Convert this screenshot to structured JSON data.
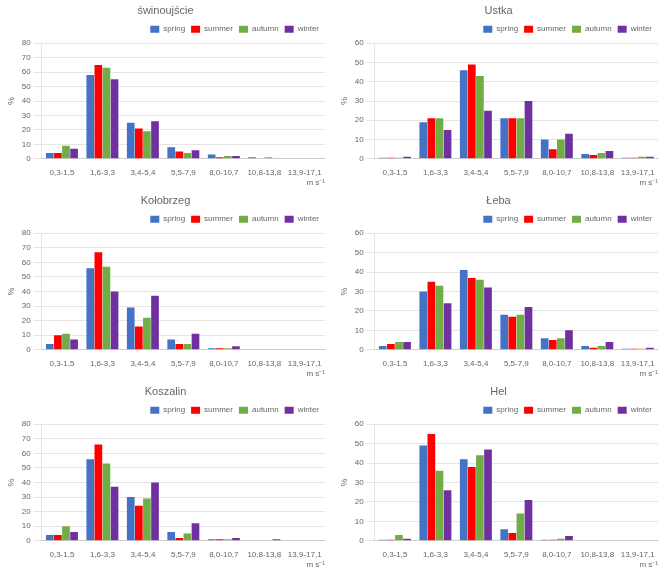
{
  "chart_data": [
    {
      "type": "bar",
      "title": "świnoujście",
      "xlabel": "m s⁻¹",
      "ylabel": "%",
      "categories": [
        "0,3-1,5",
        "1,6-3,3",
        "3,4-5,4",
        "5,5-7,9",
        "8,0-10,7",
        "10,8-13,8",
        "13,9-17,1"
      ],
      "series": [
        {
          "name": "spring",
          "color": "#4472C4",
          "values": [
            4,
            58,
            25,
            8,
            3,
            1,
            0
          ]
        },
        {
          "name": "summer",
          "color": "#FF0000",
          "values": [
            4,
            65,
            21,
            5,
            1,
            0,
            0
          ]
        },
        {
          "name": "autumn",
          "color": "#70AD47",
          "values": [
            9,
            63,
            19,
            4,
            2,
            1,
            0
          ]
        },
        {
          "name": "winter",
          "color": "#7030A0",
          "values": [
            7,
            55,
            26,
            6,
            2,
            0,
            0
          ]
        }
      ],
      "ylim": [
        0,
        80
      ],
      "yticks": [
        0,
        10,
        20,
        30,
        40,
        50,
        60,
        70,
        80
      ],
      "grid": true,
      "legend": "upper right"
    },
    {
      "type": "bar",
      "title": "Ustka",
      "xlabel": "m s⁻¹",
      "ylabel": "%",
      "categories": [
        "0,3-1,5",
        "1,6-3,3",
        "3,4-5,4",
        "5,5-7,9",
        "8,0-10,7",
        "10,8-13,8",
        "13,9-17,1"
      ],
      "series": [
        {
          "name": "spring",
          "color": "#4472C4",
          "values": [
            0.5,
            19,
            46,
            21,
            10,
            2.5,
            0.5
          ]
        },
        {
          "name": "summer",
          "color": "#FF0000",
          "values": [
            0.5,
            21,
            49,
            21,
            5,
            2,
            0.5
          ]
        },
        {
          "name": "autumn",
          "color": "#70AD47",
          "values": [
            0.5,
            21,
            43,
            21,
            10,
            3,
            1
          ]
        },
        {
          "name": "winter",
          "color": "#7030A0",
          "values": [
            1,
            15,
            25,
            30,
            13,
            4,
            1
          ]
        }
      ],
      "ylim": [
        0,
        60
      ],
      "yticks": [
        0,
        10,
        20,
        30,
        40,
        50,
        60
      ],
      "grid": true,
      "legend": "upper right"
    },
    {
      "type": "bar",
      "title": "Kołobrzeg",
      "xlabel": "m s⁻¹",
      "ylabel": "%",
      "categories": [
        "0,3-1,5",
        "1,6-3,3",
        "3,4-5,4",
        "5,5-7,9",
        "8,0-10,7",
        "10,8-13,8",
        "13,9-17,1"
      ],
      "series": [
        {
          "name": "spring",
          "color": "#4472C4",
          "values": [
            4,
            56,
            29,
            7,
            1,
            0,
            0
          ]
        },
        {
          "name": "summer",
          "color": "#FF0000",
          "values": [
            10,
            67,
            16,
            4,
            1,
            0,
            0
          ]
        },
        {
          "name": "autumn",
          "color": "#70AD47",
          "values": [
            11,
            57,
            22,
            4,
            1,
            0,
            0
          ]
        },
        {
          "name": "winter",
          "color": "#7030A0",
          "values": [
            7,
            40,
            37,
            11,
            2.5,
            0,
            0
          ]
        }
      ],
      "ylim": [
        0,
        80
      ],
      "yticks": [
        0,
        10,
        20,
        30,
        40,
        50,
        60,
        70,
        80
      ],
      "grid": true,
      "legend": "upper right"
    },
    {
      "type": "bar",
      "title": "Łeba",
      "xlabel": "m s⁻¹",
      "ylabel": "%",
      "categories": [
        "0,3-1,5",
        "1,6-3,3",
        "3,4-5,4",
        "5,5-7,9",
        "8,0-10,7",
        "10,8-13,8",
        "13,9-17,1"
      ],
      "series": [
        {
          "name": "spring",
          "color": "#4472C4",
          "values": [
            2,
            30,
            41,
            18,
            6,
            2,
            0.5
          ]
        },
        {
          "name": "summer",
          "color": "#FF0000",
          "values": [
            3,
            35,
            37,
            17,
            5,
            1,
            0.5
          ]
        },
        {
          "name": "autumn",
          "color": "#70AD47",
          "values": [
            4,
            33,
            36,
            18,
            6,
            2,
            0.5
          ]
        },
        {
          "name": "winter",
          "color": "#7030A0",
          "values": [
            4,
            24,
            32,
            22,
            10,
            4,
            1
          ]
        }
      ],
      "ylim": [
        0,
        60
      ],
      "yticks": [
        0,
        10,
        20,
        30,
        40,
        50,
        60
      ],
      "grid": true,
      "legend": "upper right"
    },
    {
      "type": "bar",
      "title": "Koszalin",
      "xlabel": "m s⁻¹",
      "ylabel": "%",
      "categories": [
        "0,3-1,5",
        "1,6-3,3",
        "3,4-5,4",
        "5,5-7,9",
        "8,0-10,7",
        "10,8-13,8",
        "13,9-17,1"
      ],
      "series": [
        {
          "name": "spring",
          "color": "#4472C4",
          "values": [
            4,
            56,
            30,
            6,
            1,
            0,
            0
          ]
        },
        {
          "name": "summer",
          "color": "#FF0000",
          "values": [
            4,
            66,
            24,
            2,
            1,
            0,
            0
          ]
        },
        {
          "name": "autumn",
          "color": "#70AD47",
          "values": [
            10,
            53,
            29,
            5,
            1,
            0,
            0
          ]
        },
        {
          "name": "winter",
          "color": "#7030A0",
          "values": [
            6,
            37,
            40,
            12,
            2,
            1,
            0
          ]
        }
      ],
      "ylim": [
        0,
        80
      ],
      "yticks": [
        0,
        10,
        20,
        30,
        40,
        50,
        60,
        70,
        80
      ],
      "grid": true,
      "legend": "upper right"
    },
    {
      "type": "bar",
      "title": "Hel",
      "xlabel": "m s⁻¹",
      "ylabel": "%",
      "categories": [
        "0,3-1,5",
        "1,6-3,3",
        "3,4-5,4",
        "5,5-7,9",
        "8,0-10,7",
        "10,8-13,8",
        "13,9-17,1"
      ],
      "series": [
        {
          "name": "spring",
          "color": "#4472C4",
          "values": [
            0.5,
            49,
            42,
            6,
            0.5,
            0,
            0
          ]
        },
        {
          "name": "summer",
          "color": "#FF0000",
          "values": [
            0.5,
            55,
            38,
            4,
            0.5,
            0,
            0
          ]
        },
        {
          "name": "autumn",
          "color": "#70AD47",
          "values": [
            3,
            36,
            44,
            14,
            1,
            0,
            0
          ]
        },
        {
          "name": "winter",
          "color": "#7030A0",
          "values": [
            1,
            26,
            47,
            21,
            2.5,
            0,
            0
          ]
        }
      ],
      "ylim": [
        0,
        60
      ],
      "yticks": [
        0,
        10,
        20,
        30,
        40,
        50,
        60
      ],
      "grid": true,
      "legend": "upper right"
    }
  ]
}
